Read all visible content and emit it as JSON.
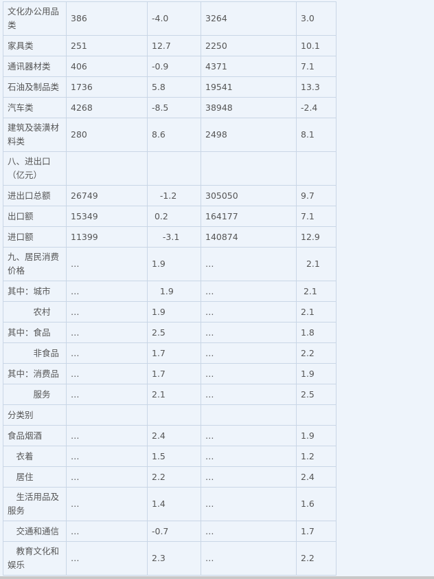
{
  "rows": [
    {
      "label": "文化办公用品类",
      "c2": "386",
      "c3": "-4.0",
      "c4": "3264",
      "c5": "3.0",
      "tall": true
    },
    {
      "label": "家具类",
      "c2": "251",
      "c3": "12.7",
      "c4": "2250",
      "c5": "10.1"
    },
    {
      "label": "通讯器材类",
      "c2": "406",
      "c3": "-0.9",
      "c4": "4371",
      "c5": "7.1"
    },
    {
      "label": "石油及制品类",
      "c2": "1736",
      "c3": "5.8",
      "c4": "19541",
      "c5": "13.3"
    },
    {
      "label": "汽车类",
      "c2": "4268",
      "c3": "-8.5",
      "c4": "38948",
      "c5": "-2.4"
    },
    {
      "label": "建筑及装潢材料类",
      "c2": "280",
      "c3": "8.6",
      "c4": "2498",
      "c5": "8.1",
      "tall": true
    },
    {
      "label": "八、进出口（亿元）",
      "c2": "",
      "c3": "",
      "c4": "",
      "c5": "",
      "tall": true
    },
    {
      "label": "进出口总额",
      "c2": "26749",
      "c3": "   -1.2",
      "c4": "305050",
      "c5": "9.7"
    },
    {
      "label": "出口额",
      "c2": "15349",
      "c3": " 0.2",
      "c4": "164177",
      "c5": "7.1"
    },
    {
      "label": "进口额",
      "c2": "11399",
      "c3": "    -3.1",
      "c4": "140874",
      "c5": "12.9"
    },
    {
      "label": "九、居民消费价格",
      "c2": "…",
      "c3": "1.9",
      "c4": "…",
      "c5": "  2.1",
      "tall": true
    },
    {
      "label": "其中：城市",
      "c2": "…",
      "c3": "   1.9",
      "c4": "…",
      "c5": " 2.1"
    },
    {
      "label": "　　　农村",
      "c2": "…",
      "c3": "1.9",
      "c4": "…",
      "c5": "2.1"
    },
    {
      "label": "其中：食品",
      "c2": "…",
      "c3": "2.5",
      "c4": "…",
      "c5": "1.8"
    },
    {
      "label": "　　　非食品",
      "c2": "…",
      "c3": "1.7",
      "c4": "…",
      "c5": "2.2"
    },
    {
      "label": "其中：消费品",
      "c2": "…",
      "c3": "1.7",
      "c4": "…",
      "c5": "1.9"
    },
    {
      "label": "　　　服务",
      "c2": "…",
      "c3": "2.1",
      "c4": "…",
      "c5": "2.5"
    },
    {
      "label": "分类别",
      "c2": "",
      "c3": "",
      "c4": "",
      "c5": ""
    },
    {
      "label": "食品烟酒",
      "c2": "…",
      "c3": "2.4",
      "c4": "…",
      "c5": "1.9"
    },
    {
      "label": "　衣着",
      "c2": "…",
      "c3": "1.5",
      "c4": "…",
      "c5": "1.2"
    },
    {
      "label": "　居住",
      "c2": "…",
      "c3": "2.2",
      "c4": "…",
      "c5": "2.4"
    },
    {
      "label": "　生活用品及服务",
      "c2": "…",
      "c3": "1.4",
      "c4": "…",
      "c5": "1.6",
      "tall": true
    },
    {
      "label": "　交通和通信",
      "c2": "…",
      "c3": "-0.7",
      "c4": "…",
      "c5": "1.7"
    },
    {
      "label": "　教育文化和娱乐",
      "c2": "…",
      "c3": "2.3",
      "c4": "…",
      "c5": "2.2",
      "tall": true
    }
  ]
}
